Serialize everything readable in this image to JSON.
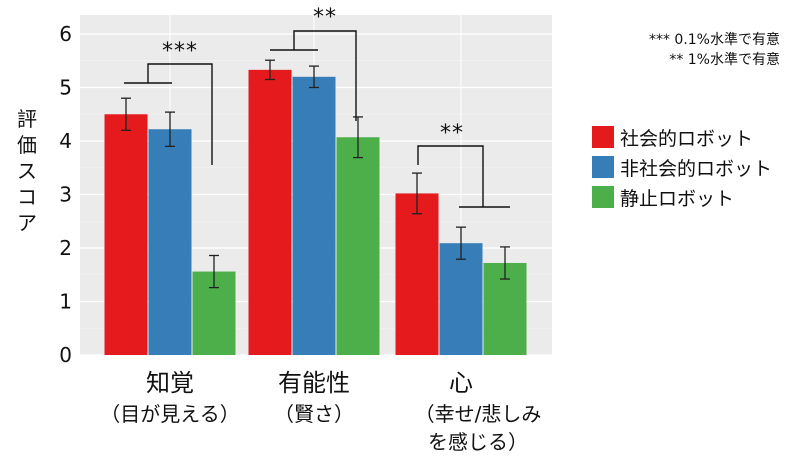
{
  "chart_data": {
    "type": "bar",
    "ylabel": "評価スコア",
    "ylim": [
      0,
      6.2
    ],
    "yticks": [
      "0",
      "1",
      "2",
      "3",
      "4",
      "5",
      "6"
    ],
    "grid": true,
    "legend_position": "right",
    "categories": [
      {
        "label": "知覚",
        "sublabel_lines": [
          "（目が見える）"
        ]
      },
      {
        "label": "有能性",
        "sublabel_lines": [
          "（賢さ）"
        ]
      },
      {
        "label": "心",
        "sublabel_lines": [
          "（幸せ/悲しみ",
          "を感じる）"
        ]
      }
    ],
    "series": [
      {
        "name": "社会的ロボット",
        "color": "#e41a1c",
        "values": [
          4.5,
          5.33,
          3.02
        ],
        "errors": [
          0.3,
          0.18,
          0.38
        ]
      },
      {
        "name": "非社会的ロボット",
        "color": "#377eb8",
        "values": [
          4.22,
          5.2,
          2.09
        ],
        "errors": [
          0.32,
          0.2,
          0.3
        ]
      },
      {
        "name": "静止ロボット",
        "color": "#4daf4a",
        "values": [
          1.56,
          4.07,
          1.72
        ],
        "errors": [
          0.3,
          0.38,
          0.3
        ]
      }
    ],
    "significance": [
      {
        "category_index": 0,
        "label": "***"
      },
      {
        "category_index": 1,
        "label": "**"
      },
      {
        "category_index": 2,
        "label": "**"
      }
    ],
    "notes": [
      "*** 0.1%水準で有意",
      "** 1%水準で有意"
    ]
  }
}
